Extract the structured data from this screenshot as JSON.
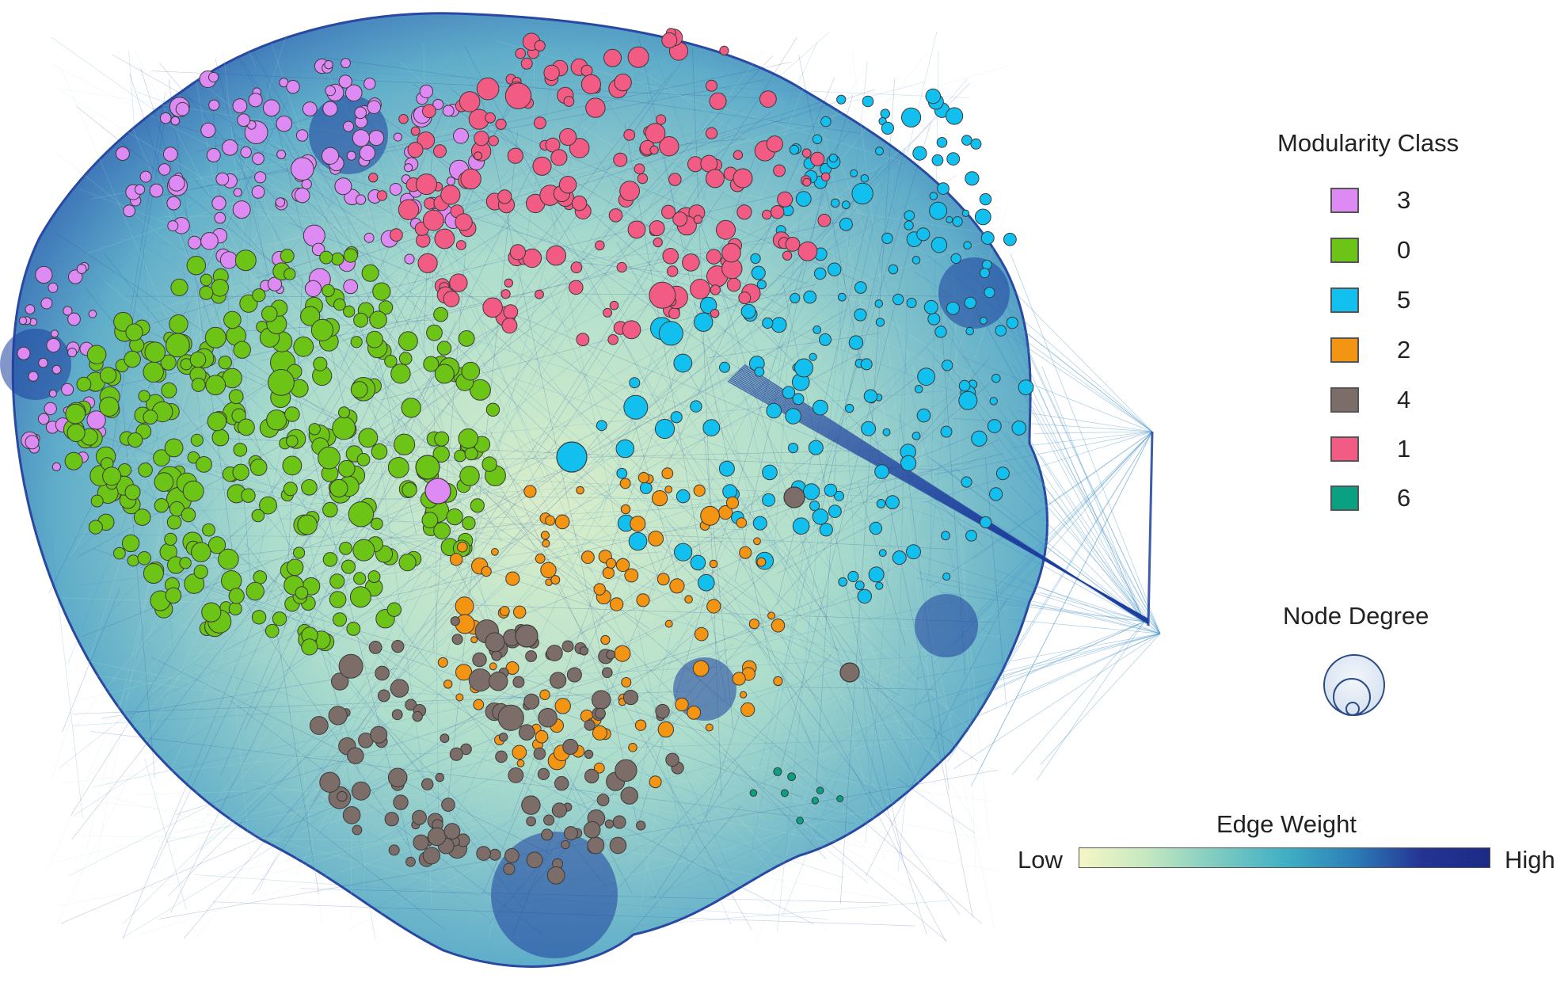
{
  "legend": {
    "modularity_title": "Modularity Class",
    "classes": [
      {
        "label": "3",
        "color": "#de8af5"
      },
      {
        "label": "0",
        "color": "#6cc417"
      },
      {
        "label": "5",
        "color": "#12c0f0"
      },
      {
        "label": "2",
        "color": "#f39512"
      },
      {
        "label": "4",
        "color": "#7d6d69"
      },
      {
        "label": "1",
        "color": "#f25c84"
      },
      {
        "label": "6",
        "color": "#0aa182"
      }
    ],
    "degree_title": "Node Degree",
    "weight_title": "Edge Weight",
    "weight_low": "Low",
    "weight_high": "High",
    "weight_gradient": [
      "#f6f6c4",
      "#c4e8c0",
      "#7fcbc2",
      "#41b0c4",
      "#2c7fb8",
      "#253494",
      "#1b2a86"
    ]
  },
  "network": {
    "edge_dark_color": "#1e3f9e",
    "edge_mid_color": "#3f8fc4",
    "edge_light_color": "#bfe3d2",
    "fill_color": "#8fcfd2"
  }
}
